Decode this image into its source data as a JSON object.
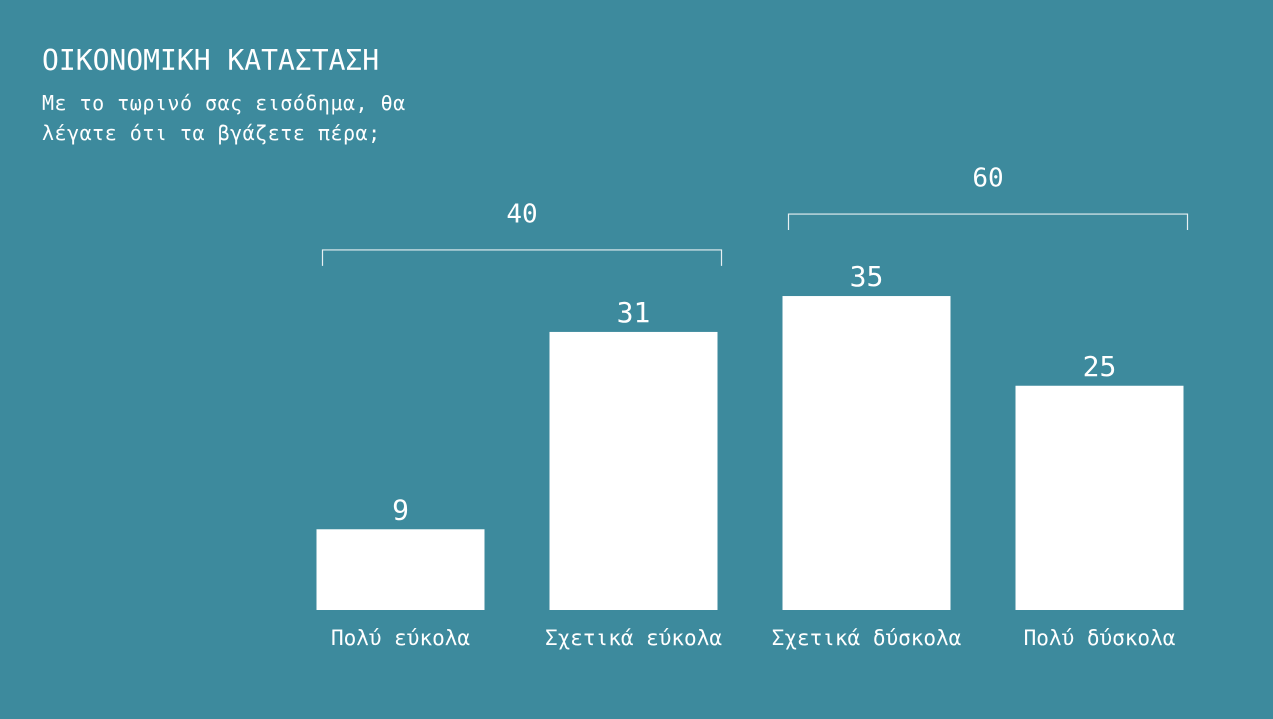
{
  "chart_data": {
    "type": "bar",
    "title": "ΟΙΚΟΝΟΜΙΚΗ ΚΑΤΑΣΤΑΣΗ",
    "subtitle": "Με το τωρινό σας εισόδημα, θα λέγατε ότι τα βγάζετε πέρα;",
    "categories": [
      "Πολύ εύκολα",
      "Σχετικά εύκολα",
      "Σχετικά δύσκολα",
      "Πολύ δύσκολα"
    ],
    "values": [
      9,
      31,
      35,
      25
    ],
    "color": "#ffffff",
    "group_totals": [
      40,
      60
    ]
  }
}
